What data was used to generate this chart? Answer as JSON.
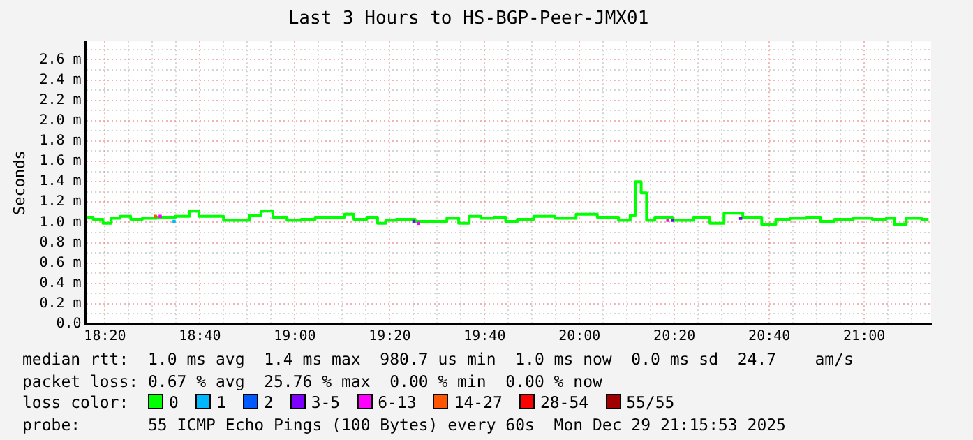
{
  "chart_data": {
    "type": "step",
    "title": "Last 3 Hours to HS-BGP-Peer-JMX01",
    "ylabel": "Seconds",
    "legend_title": "loss color:",
    "legend": "bottom",
    "grid": true,
    "annotations": [
      "median rtt:  1.0 ms avg  1.4 ms max  980.7 us min  1.0 ms now  0.0 ms sd  24.7    am/s",
      "packet loss: 0.67 % avg  25.76 % max  0.00 % min  0.00 % now",
      "probe:       55 ICMP Echo Pings (100 Bytes) every 60s  Mon Dec 29 21:15:53 2025"
    ],
    "xlim": [
      18.265,
      21.235
    ],
    "ylim": [
      0,
      2.78
    ],
    "xticks": [
      {
        "value": 18.3333,
        "label": "18:20"
      },
      {
        "value": 18.4167,
        "label": null
      },
      {
        "value": 18.5,
        "label": null
      },
      {
        "value": 18.5833,
        "label": null
      },
      {
        "value": 18.6667,
        "label": "18:40"
      },
      {
        "value": 18.75,
        "label": null
      },
      {
        "value": 18.8333,
        "label": null
      },
      {
        "value": 18.9167,
        "label": null
      },
      {
        "value": 19,
        "label": "19:00"
      },
      {
        "value": 19.0833,
        "label": null
      },
      {
        "value": 19.1667,
        "label": null
      },
      {
        "value": 19.25,
        "label": null
      },
      {
        "value": 19.3333,
        "label": "19:20"
      },
      {
        "value": 19.4167,
        "label": null
      },
      {
        "value": 19.5,
        "label": null
      },
      {
        "value": 19.5833,
        "label": null
      },
      {
        "value": 19.6667,
        "label": "19:40"
      },
      {
        "value": 19.75,
        "label": null
      },
      {
        "value": 19.8333,
        "label": null
      },
      {
        "value": 19.9167,
        "label": null
      },
      {
        "value": 20,
        "label": "20:00"
      },
      {
        "value": 20.0833,
        "label": null
      },
      {
        "value": 20.1667,
        "label": null
      },
      {
        "value": 20.25,
        "label": null
      },
      {
        "value": 20.3333,
        "label": "20:20"
      },
      {
        "value": 20.4167,
        "label": null
      },
      {
        "value": 20.5,
        "label": null
      },
      {
        "value": 20.5833,
        "label": null
      },
      {
        "value": 20.6667,
        "label": "20:40"
      },
      {
        "value": 20.75,
        "label": null
      },
      {
        "value": 20.8333,
        "label": null
      },
      {
        "value": 20.9167,
        "label": null
      },
      {
        "value": 21,
        "label": "21:00"
      },
      {
        "value": 21.0833,
        "label": null
      },
      {
        "value": 21.1667,
        "label": null
      }
    ],
    "yticks": [
      {
        "value": 0,
        "label": "0.0"
      },
      {
        "value": 0.1,
        "label": null
      },
      {
        "value": 0.2,
        "label": "0.2 m"
      },
      {
        "value": 0.3,
        "label": null
      },
      {
        "value": 0.4,
        "label": "0.4 m"
      },
      {
        "value": 0.5,
        "label": null
      },
      {
        "value": 0.6,
        "label": "0.6 m"
      },
      {
        "value": 0.7,
        "label": null
      },
      {
        "value": 0.8,
        "label": "0.8 m"
      },
      {
        "value": 0.9,
        "label": null
      },
      {
        "value": 1.0,
        "label": "1.0 m"
      },
      {
        "value": 1.1,
        "label": null
      },
      {
        "value": 1.2,
        "label": "1.2 m"
      },
      {
        "value": 1.3,
        "label": null
      },
      {
        "value": 1.4,
        "label": "1.4 m"
      },
      {
        "value": 1.5,
        "label": null
      },
      {
        "value": 1.6,
        "label": "1.6 m"
      },
      {
        "value": 1.7,
        "label": null
      },
      {
        "value": 1.8,
        "label": "1.8 m"
      },
      {
        "value": 1.9,
        "label": null
      },
      {
        "value": 2.0,
        "label": "2.0 m"
      },
      {
        "value": 2.1,
        "label": null
      },
      {
        "value": 2.2,
        "label": "2.2 m"
      },
      {
        "value": 2.3,
        "label": null
      },
      {
        "value": 2.4,
        "label": "2.4 m"
      },
      {
        "value": 2.5,
        "label": null
      },
      {
        "value": 2.6,
        "label": "2.6 m"
      },
      {
        "value": 2.7,
        "label": null
      }
    ],
    "series": [
      {
        "name": "0",
        "color": "#00ff00",
        "x": [
          18.271,
          18.312,
          18.34,
          18.37,
          18.403,
          18.444,
          18.485,
          18.543,
          18.618,
          18.642,
          18.684,
          18.733,
          18.766,
          18.816,
          18.865,
          18.898,
          18.948,
          18.997,
          19.047,
          19.096,
          19.162,
          19.187,
          19.228,
          19.278,
          19.303,
          19.336,
          19.377,
          19.468,
          19.509,
          19.559,
          19.592,
          19.633,
          19.674,
          19.724,
          19.757,
          19.806,
          19.872,
          19.955,
          20.021,
          20.104,
          20.17,
          20.186,
          20.206,
          20.227,
          20.244,
          20.285,
          20.368,
          20.433,
          20.483,
          20.532,
          20.615,
          20.665,
          20.714,
          20.764,
          20.83,
          20.863,
          20.929,
          20.995,
          21.061,
          21.094,
          21.119,
          21.176,
          21.226
        ],
        "values": [
          1.05,
          1.03,
          0.99,
          1.04,
          1.06,
          1.03,
          1.04,
          1.05,
          1.06,
          1.11,
          1.06,
          1.06,
          1.02,
          1.02,
          1.07,
          1.11,
          1.05,
          1.02,
          1.03,
          1.05,
          1.05,
          1.08,
          1.03,
          1.05,
          0.99,
          1.02,
          1.03,
          1.01,
          1.01,
          1.04,
          0.99,
          1.06,
          1.04,
          1.05,
          1.01,
          1.03,
          1.06,
          1.04,
          1.08,
          1.05,
          1.02,
          1.07,
          1.4,
          1.29,
          1.02,
          1.05,
          1.02,
          1.05,
          0.99,
          1.09,
          1.05,
          0.98,
          1.03,
          1.04,
          1.05,
          1.01,
          1.03,
          1.04,
          1.03,
          1.04,
          0.98,
          1.04,
          1.03
        ]
      },
      {
        "name": "1",
        "color": "#00b8ff",
        "type": "scatter",
        "x": [
          18.576
        ],
        "values": [
          1.01
        ]
      },
      {
        "name": "2",
        "color": "#0059ff",
        "type": "scatter"
      },
      {
        "name": "3-5",
        "color": "#7e00ff",
        "type": "scatter",
        "x": [
          19.418,
          20.326,
          20.566
        ],
        "values": [
          1.01,
          1.02,
          1.04
        ]
      },
      {
        "name": "6-13",
        "color": "#ff00ff",
        "type": "scatter",
        "x": [
          18.527,
          19.435,
          20.31
        ],
        "values": [
          1.06,
          0.99,
          1.02
        ]
      },
      {
        "name": "14-27",
        "color": "#ff5500",
        "type": "scatter",
        "x": [
          18.51
        ],
        "values": [
          1.06
        ]
      },
      {
        "name": "28-54",
        "color": "#ff0000",
        "type": "scatter"
      },
      {
        "name": "55/55",
        "color": "#a10000",
        "type": "scatter"
      }
    ]
  }
}
